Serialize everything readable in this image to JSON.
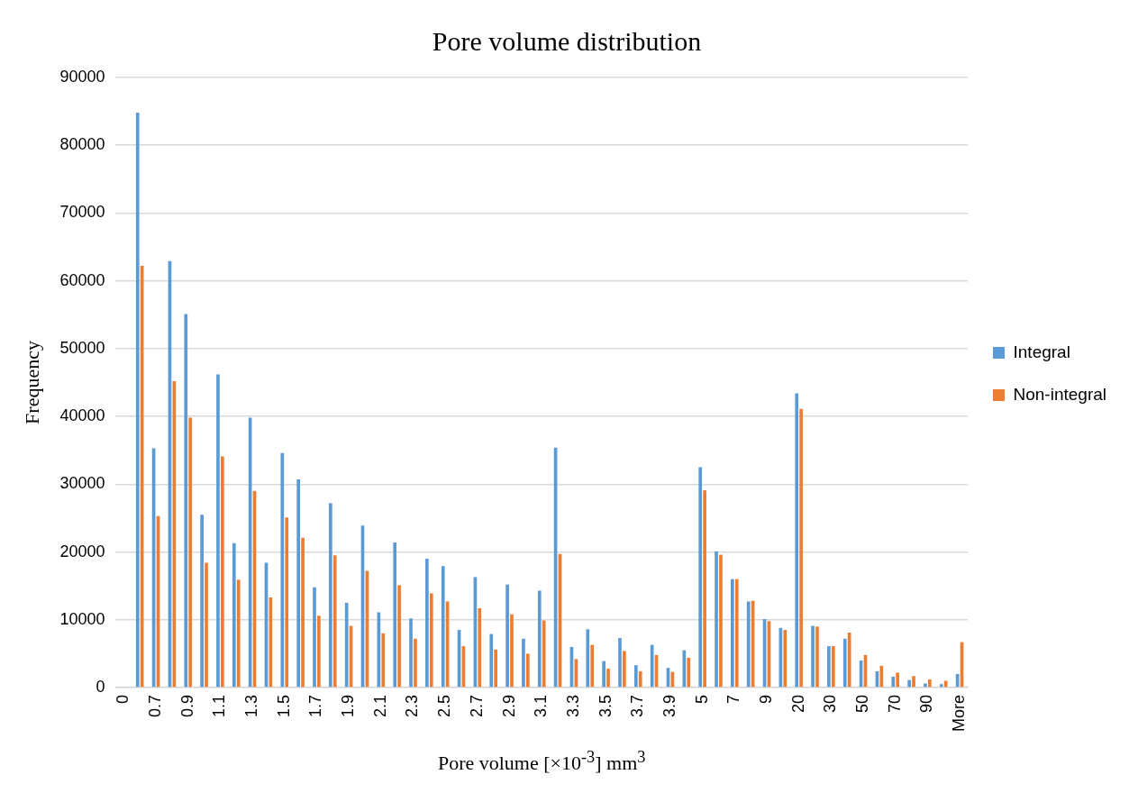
{
  "chart_data": {
    "type": "bar",
    "title": "Pore volume distribution",
    "xlabel": "Pore volume [×10$^{-3}$]  mm$^{3}$",
    "ylabel": "Frequency",
    "categories": [
      "0",
      null,
      "0.7",
      null,
      "0.9",
      null,
      "1.1",
      null,
      "1.3",
      null,
      "1.5",
      null,
      "1.7",
      null,
      "1.9",
      null,
      "2.1",
      null,
      "2.3",
      null,
      "2.5",
      null,
      "2.7",
      null,
      "2.9",
      null,
      "3.1",
      null,
      "3.3",
      null,
      "3.5",
      null,
      "3.7",
      null,
      "3.9",
      null,
      "5",
      null,
      "7",
      null,
      "9",
      null,
      "20",
      null,
      "30",
      null,
      "50",
      null,
      "70",
      null,
      "90",
      null,
      "More"
    ],
    "series": [
      {
        "name": "Integral",
        "color": "#5b9bd5",
        "values": [
          0,
          84800,
          35300,
          62900,
          55100,
          25500,
          46200,
          21300,
          39800,
          18400,
          34600,
          30700,
          14800,
          27200,
          12500,
          23900,
          11100,
          21400,
          10200,
          19000,
          17900,
          8500,
          16300,
          7900,
          15200,
          7200,
          14300,
          35400,
          6000,
          8600,
          3900,
          7300,
          3300,
          6300,
          2900,
          5500,
          32500,
          20100,
          16000,
          12700,
          10100,
          8800,
          43400,
          9100,
          6100,
          7200,
          4000,
          2400,
          1600,
          1100,
          600,
          500,
          2000
        ]
      },
      {
        "name": "Non-integral",
        "color": "#ed7d31",
        "values": [
          0,
          62200,
          25300,
          45200,
          39800,
          18400,
          34100,
          15900,
          29000,
          13300,
          25100,
          22100,
          10600,
          19500,
          9100,
          17200,
          8000,
          15100,
          7200,
          13900,
          12700,
          6100,
          11700,
          5600,
          10800,
          5000,
          9900,
          19700,
          4200,
          6300,
          2800,
          5400,
          2400,
          4800,
          2300,
          4400,
          29100,
          19600,
          16000,
          12800,
          9800,
          8500,
          41100,
          9000,
          6100,
          8100,
          4800,
          3200,
          2200,
          1700,
          1200,
          1000,
          6700
        ]
      }
    ],
    "ylim": [
      0,
      90000
    ],
    "yticks": [
      0,
      10000,
      20000,
      30000,
      40000,
      50000,
      60000,
      70000,
      80000,
      90000
    ],
    "grid": "y",
    "legend": "right"
  }
}
